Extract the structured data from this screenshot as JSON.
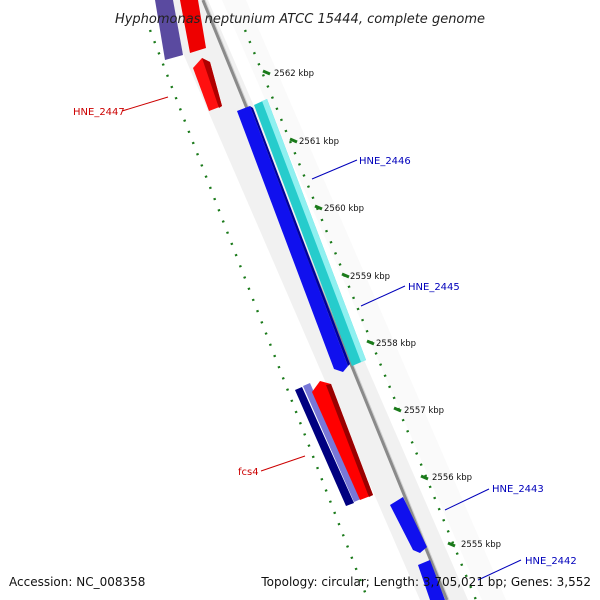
{
  "title": "Hyphomonas neptunium ATCC 15444, complete genome",
  "footer": {
    "accession": "Accession: NC_008358",
    "stats": "Topology: circular; Length: 3,705,021 bp; Genes: 3,552"
  },
  "colors": {
    "backbone": "#8a8a8a",
    "forward_red": "#ff0000",
    "reverse_blue": "#0000ee",
    "cyan": "#20c8c8",
    "navy": "#000080",
    "lavender": "#7070d0",
    "tick_green": "#1a7a1a",
    "label_red": "#cc0000",
    "label_blue": "#0000bb"
  },
  "scale_ticks": [
    {
      "label": "2562 kbp"
    },
    {
      "label": "2561 kbp"
    },
    {
      "label": "2560 kbp"
    },
    {
      "label": "2559 kbp"
    },
    {
      "label": "2558 kbp"
    },
    {
      "label": "2557 kbp"
    },
    {
      "label": "2556 kbp"
    },
    {
      "label": "2555 kbp"
    }
  ],
  "gene_labels": [
    {
      "name": "HNE_2447",
      "color": "red"
    },
    {
      "name": "HNE_2446",
      "color": "blue"
    },
    {
      "name": "HNE_2445",
      "color": "blue"
    },
    {
      "name": "fcs4",
      "color": "red"
    },
    {
      "name": "HNE_2443",
      "color": "blue"
    },
    {
      "name": "HNE_2442",
      "color": "blue"
    }
  ]
}
